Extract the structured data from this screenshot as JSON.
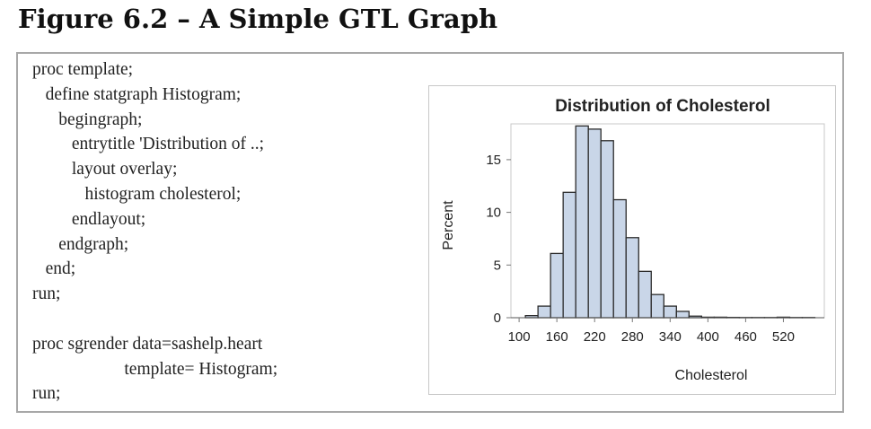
{
  "figure_title": "Figure 6.2 – A Simple GTL Graph",
  "code_lines": [
    "proc template;",
    "  define statgraph Histogram;",
    "    begingraph;",
    "      entrytitle 'Distribution of ..;",
    "      layout overlay;",
    "        histogram cholesterol;",
    "      endlayout;",
    "    endgraph;",
    "  end;",
    "run;",
    "",
    "proc sgrender data=sashelp.heart",
    "              template= Histogram;",
    "run;"
  ],
  "chart_data": {
    "type": "bar",
    "title": "Distribution of Cholesterol",
    "xlabel": "Cholesterol",
    "ylabel": "Percent",
    "bin_width": 20,
    "bin_starts": [
      110,
      130,
      150,
      170,
      190,
      210,
      230,
      250,
      270,
      290,
      310,
      330,
      350,
      370,
      390,
      410,
      430,
      450,
      470,
      490,
      510,
      530,
      550
    ],
    "values": [
      0.2,
      1.1,
      6.1,
      11.9,
      18.2,
      17.9,
      16.8,
      11.2,
      7.6,
      4.4,
      2.2,
      1.1,
      0.6,
      0.15,
      0.05,
      0.05,
      0.03,
      0.02,
      0.02,
      0.02,
      0.05,
      0.02,
      0.02
    ],
    "xticks": [
      100,
      160,
      220,
      280,
      340,
      400,
      460,
      520
    ],
    "yticks": [
      0,
      5,
      10,
      15
    ],
    "xlim": [
      87,
      585
    ],
    "ylim": [
      0,
      18.4
    ],
    "grid": false,
    "bar_fill": "#c9d6e8",
    "bar_stroke": "#2b2b2b"
  }
}
